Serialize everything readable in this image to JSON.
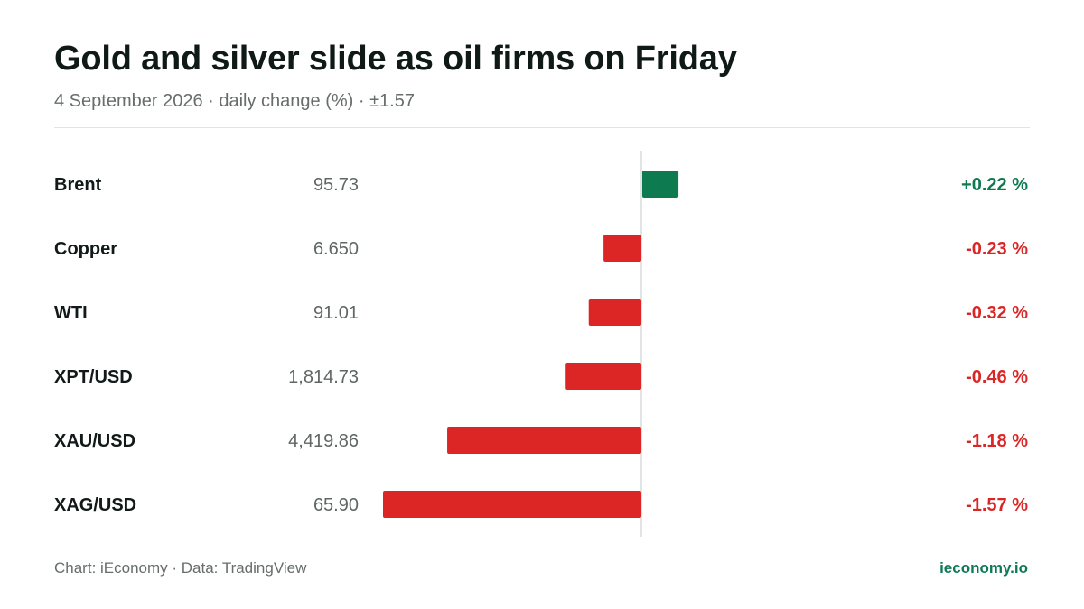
{
  "header": {
    "title": "Gold and silver slide as oil firms on Friday",
    "subtitle": "4 September 2026 · daily change (%) · ±1.57"
  },
  "footer": {
    "source": "Chart: iEconomy · Data: TradingView",
    "brand": "ieconomy.io"
  },
  "colors": {
    "positive": "#0e7a4f",
    "negative": "#dc2626",
    "axis": "#d9dcdb",
    "label": "#111a18",
    "price": "#5f6664"
  },
  "chart_data": {
    "type": "bar",
    "orientation": "horizontal",
    "categories": [
      "Brent",
      "Copper",
      "WTI",
      "XPT/USD",
      "XAU/USD",
      "XAG/USD"
    ],
    "prices": [
      "95.73",
      "6.650",
      "91.01",
      "1,814.73",
      "4,419.86",
      "65.90"
    ],
    "values": [
      0.22,
      -0.23,
      -0.32,
      -0.46,
      -1.18,
      -1.57
    ],
    "value_labels": [
      "+0.22 %",
      "-0.23 %",
      "-0.32 %",
      "-0.46 %",
      "-1.18 %",
      "-1.57 %"
    ],
    "xlim": [
      -1.57,
      1.57
    ],
    "grid": false,
    "legend": "none"
  }
}
